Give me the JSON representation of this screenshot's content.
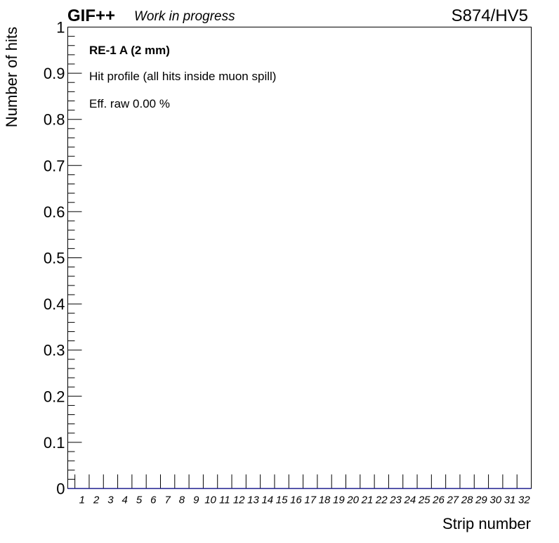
{
  "header": {
    "experiment": "GIF++",
    "status": "Work in progress",
    "run_label": "S874/HV5"
  },
  "annotations": {
    "detector": "RE-1 A (2 mm)",
    "description": "Hit profile (all hits inside muon spill)",
    "efficiency": "Eff. raw 0.00 %"
  },
  "chart_data": {
    "type": "bar",
    "title": "",
    "xlabel": "Strip number",
    "ylabel": "Number of hits",
    "categories": [
      "1",
      "2",
      "3",
      "4",
      "5",
      "6",
      "7",
      "8",
      "9",
      "10",
      "11",
      "12",
      "13",
      "14",
      "15",
      "16",
      "17",
      "18",
      "19",
      "20",
      "21",
      "22",
      "23",
      "24",
      "25",
      "26",
      "27",
      "28",
      "29",
      "30",
      "31",
      "32"
    ],
    "values": [
      0,
      0,
      0,
      0,
      0,
      0,
      0,
      0,
      0,
      0,
      0,
      0,
      0,
      0,
      0,
      0,
      0,
      0,
      0,
      0,
      0,
      0,
      0,
      0,
      0,
      0,
      0,
      0,
      0,
      0,
      0,
      0
    ],
    "y_tick_labels": [
      "0",
      "0.1",
      "0.2",
      "0.3",
      "0.4",
      "0.5",
      "0.6",
      "0.7",
      "0.8",
      "0.9",
      "1"
    ],
    "ylim": [
      0,
      1
    ],
    "grid": false,
    "colors": {
      "line": "#1f1f8f",
      "frame": "#000000"
    }
  }
}
